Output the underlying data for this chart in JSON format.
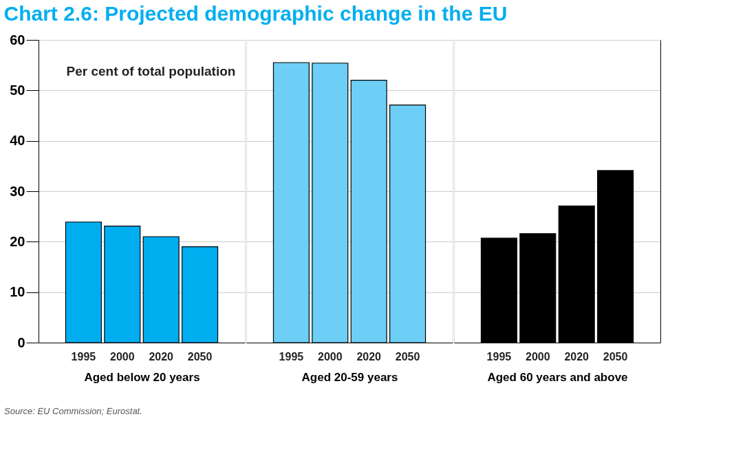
{
  "chart_data": [
    {
      "type": "bar",
      "title": "Chart 2.6: Projected demographic change in the EU",
      "ylabel": "Per cent of total population",
      "xlabel": "Aged below 20 years",
      "categories": [
        "1995",
        "2000",
        "2020",
        "2050"
      ],
      "values": [
        23.9,
        23.1,
        21.0,
        19.0
      ],
      "colors": [
        "#00aeef",
        "#00aeef",
        "#00aeef",
        "#00aeef"
      ],
      "ylim": [
        0,
        60
      ],
      "yticks": [
        0,
        10,
        20,
        30,
        40,
        50,
        60
      ],
      "grid": "y",
      "annotations": [
        "Source: EU Commission; Eurostat."
      ]
    },
    {
      "type": "bar",
      "xlabel": "Aged 20-59 years",
      "categories": [
        "1995",
        "2000",
        "2020",
        "2050"
      ],
      "values": [
        55.5,
        55.4,
        52.0,
        47.1
      ],
      "colors": [
        "#6dcff6",
        "#6dcff6",
        "#6dcff6",
        "#6dcff6"
      ],
      "ylim": [
        0,
        60
      ],
      "yticks": [
        0,
        10,
        20,
        30,
        40,
        50,
        60
      ],
      "grid": "y",
      "tick_labels": "x"
    },
    {
      "type": "bar",
      "xlabel": "Aged 60 years and above",
      "categories": [
        "1995",
        "2000",
        "2020",
        "2050"
      ],
      "values": [
        20.7,
        21.6,
        27.1,
        34.1
      ],
      "colors": [
        "#000000",
        "#000000",
        "#000000",
        "#000000"
      ],
      "ylim": [
        0,
        60
      ],
      "yticks": [
        0,
        10,
        20,
        30,
        40,
        50,
        60
      ],
      "grid": "y",
      "tick_labels": "x"
    }
  ]
}
